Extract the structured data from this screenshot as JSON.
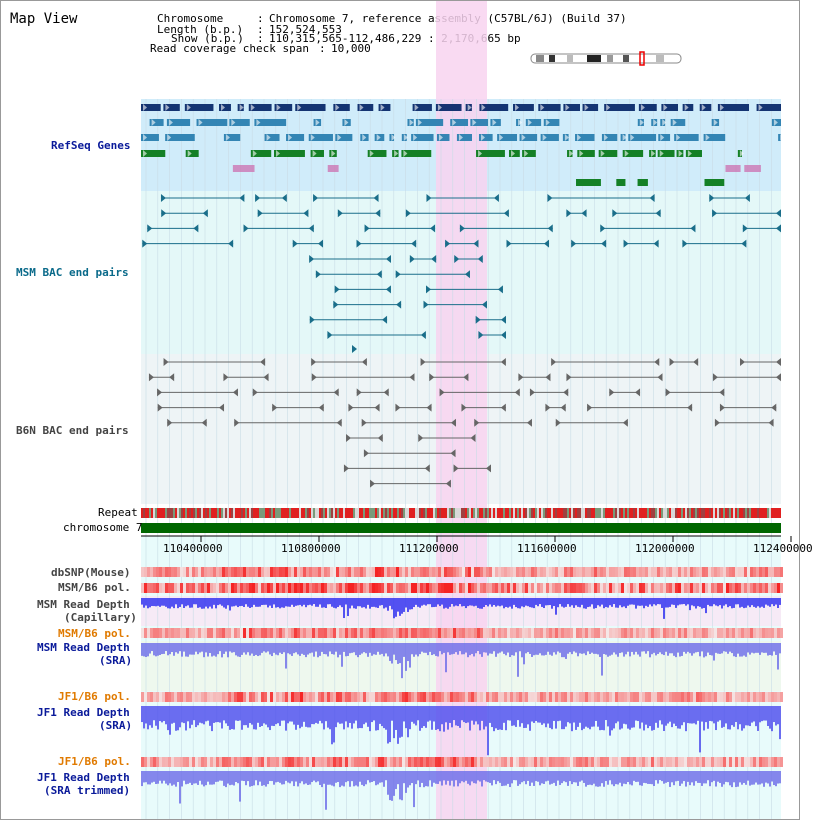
{
  "view_title": "Map View",
  "info": {
    "chromosome_label": "Chromosome",
    "chromosome_value": "Chromosome 7, reference assembly (C57BL/6J) (Build 37)",
    "length_label": "Length (b.p.)",
    "length_value": "152,524,553",
    "show_label": "Show (b.p.)",
    "show_value": "110,315,565-112,486,229 : 2,170,665 bp",
    "coverage_label": "Read coverage check span",
    "coverage_value": "10,000"
  },
  "tracks": {
    "refseq": "RefSeq Genes",
    "msm_bac": "MSM BAC end pairs",
    "b6n_bac": "B6N BAC end pairs",
    "repeat": "Repeat",
    "chromosome": "chromosome 7",
    "dbsnp": "dbSNP(Mouse)",
    "msm_b6_pol_1": "MSM/B6 pol.",
    "msm_read_depth_cap_1": "MSM Read Depth",
    "msm_read_depth_cap_2": "(Capillary)",
    "msm_b6_pol_2": "MSM/B6 pol.",
    "msm_read_depth_sra_1": "MSM Read Depth",
    "msm_read_depth_sra_2": "(SRA)",
    "jf1_b6_pol_1": "JF1/B6 pol.",
    "jf1_read_depth_sra_1": "JF1 Read Depth",
    "jf1_read_depth_sra_2": "(SRA)",
    "jf1_b6_pol_2": "JF1/B6 pol.",
    "jf1_read_depth_trim_1": "JF1 Read Depth",
    "jf1_read_depth_trim_2": "(SRA trimmed)"
  },
  "axis_ticks": [
    "110400000",
    "110800000",
    "111200000",
    "111600000",
    "112000000",
    "112400000"
  ],
  "colors": {
    "refseq_bg": "#d0ecfa",
    "msm_bac_bg": "#e4f8f8",
    "b6n_bg": "#eef4f6",
    "highlight": "#f8d4f0",
    "chromosome": "#006600",
    "depth_blue": "#3030f0",
    "pol_red": "#f03030",
    "gene_navy": "#0a2a6a",
    "gene_green": "#0a7a1a"
  }
}
